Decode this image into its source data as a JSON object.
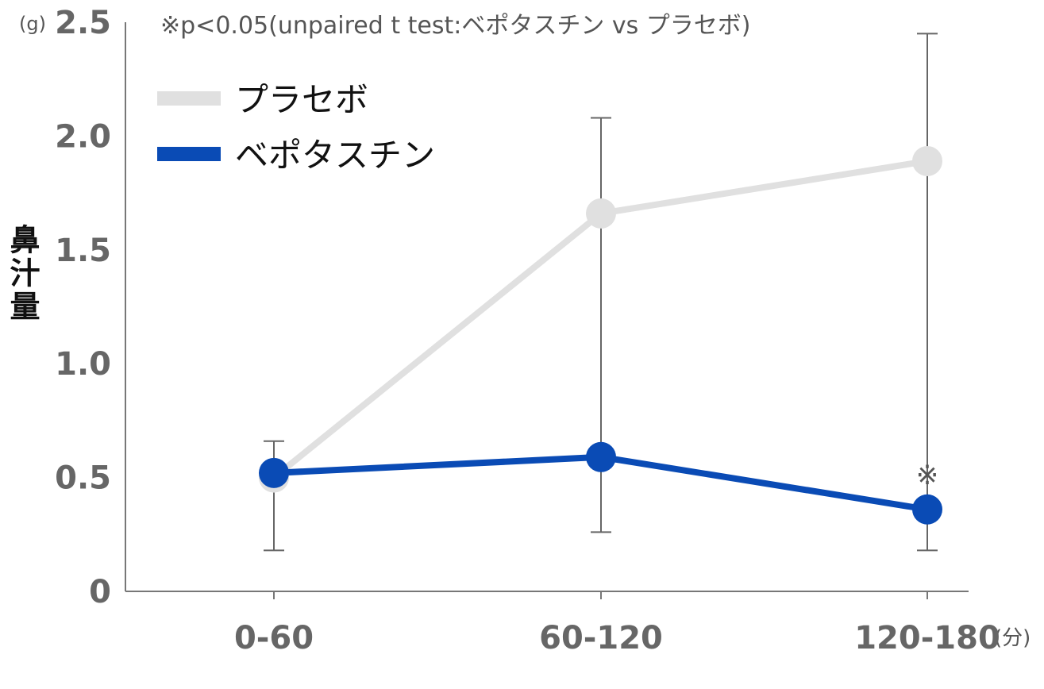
{
  "chart_data": {
    "type": "line",
    "categories": [
      "0-60",
      "60-120",
      "120-180"
    ],
    "x_unit": "(分)",
    "y_unit": "(g)",
    "ylabel": "鼻汁量",
    "ylim": [
      0,
      2.5
    ],
    "yticks": [
      0,
      0.5,
      1.0,
      1.5,
      2.0,
      2.5
    ],
    "ytick_labels": [
      "0",
      "0.5",
      "1.0",
      "1.5",
      "2.0",
      "2.5"
    ],
    "note": "※p<0.05(unpaired t test:ベポタスチン vs プラセボ)",
    "legend_position": "top-left",
    "series": [
      {
        "name": "プラセボ",
        "color": "#e0e0e0",
        "values": [
          0.5,
          1.66,
          1.89
        ],
        "error_upper": [
          0.66,
          2.08,
          2.45
        ],
        "error_lower": [
          0.18,
          0.26,
          0.18
        ]
      },
      {
        "name": "ベポタスチン",
        "color": "#0a4bb5",
        "values": [
          0.52,
          0.59,
          0.36
        ],
        "error_upper": [
          0.66,
          2.08,
          2.45
        ],
        "error_lower": [
          0.18,
          0.26,
          0.18
        ]
      }
    ],
    "annotations": [
      {
        "category": "120-180",
        "text": "※"
      }
    ],
    "grid": false
  }
}
